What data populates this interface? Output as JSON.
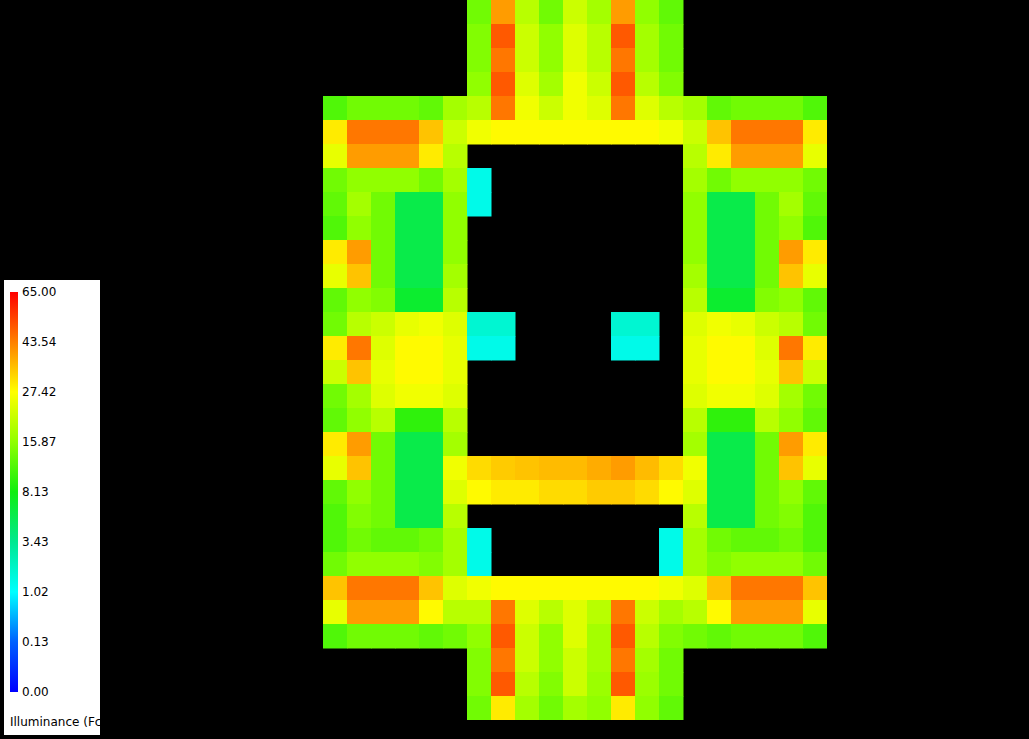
{
  "chart_data": {
    "type": "heatmap",
    "tick_labels": false,
    "cells": [
      [
        null,
        null,
        null,
        null,
        null,
        null,
        14,
        40,
        20,
        14,
        22,
        18,
        40,
        16,
        13,
        null,
        null,
        null,
        null,
        null,
        null
      ],
      [
        null,
        null,
        null,
        null,
        null,
        null,
        15,
        50,
        22,
        16,
        24,
        20,
        50,
        18,
        14,
        null,
        null,
        null,
        null,
        null,
        null
      ],
      [
        null,
        null,
        null,
        null,
        null,
        null,
        15,
        45,
        22,
        16,
        24,
        20,
        45,
        18,
        14,
        null,
        null,
        null,
        null,
        null,
        null
      ],
      [
        null,
        null,
        null,
        null,
        null,
        null,
        16,
        50,
        24,
        18,
        26,
        22,
        50,
        20,
        15,
        null,
        null,
        null,
        null,
        null,
        null
      ],
      [
        12,
        14,
        14,
        14,
        13,
        18,
        20,
        45,
        26,
        22,
        26,
        24,
        45,
        24,
        20,
        18,
        13,
        14,
        14,
        14,
        12
      ],
      [
        30,
        45,
        45,
        45,
        35,
        22,
        26,
        28,
        28,
        28,
        28,
        28,
        28,
        28,
        26,
        22,
        35,
        45,
        45,
        45,
        30
      ],
      [
        25,
        40,
        40,
        40,
        30,
        20,
        null,
        null,
        null,
        null,
        null,
        null,
        null,
        null,
        null,
        20,
        30,
        40,
        40,
        40,
        25
      ],
      [
        14,
        16,
        16,
        16,
        14,
        18,
        1.5,
        null,
        null,
        null,
        null,
        null,
        null,
        null,
        null,
        18,
        14,
        16,
        16,
        16,
        14
      ],
      [
        13,
        18,
        14,
        6,
        6,
        16,
        1.5,
        null,
        null,
        null,
        null,
        null,
        null,
        null,
        null,
        16,
        6,
        6,
        14,
        18,
        13
      ],
      [
        12,
        16,
        14,
        6,
        6,
        16,
        null,
        null,
        null,
        null,
        null,
        null,
        null,
        null,
        null,
        16,
        6,
        6,
        14,
        16,
        12
      ],
      [
        30,
        40,
        14,
        6,
        6,
        16,
        null,
        null,
        null,
        null,
        null,
        null,
        null,
        null,
        null,
        16,
        6,
        6,
        14,
        40,
        30
      ],
      [
        25,
        35,
        14,
        6,
        6,
        18,
        null,
        null,
        null,
        null,
        null,
        null,
        null,
        null,
        null,
        18,
        6,
        6,
        14,
        35,
        25
      ],
      [
        13,
        16,
        15,
        7,
        7,
        20,
        null,
        null,
        null,
        null,
        null,
        null,
        null,
        null,
        null,
        20,
        7,
        7,
        15,
        16,
        13
      ],
      [
        14,
        20,
        22,
        25,
        26,
        24,
        2,
        2,
        null,
        null,
        null,
        null,
        2,
        2,
        null,
        24,
        26,
        25,
        22,
        20,
        14
      ],
      [
        30,
        45,
        24,
        28,
        28,
        25,
        1.5,
        1.5,
        null,
        null,
        null,
        null,
        1.5,
        1.5,
        null,
        25,
        28,
        28,
        24,
        45,
        30
      ],
      [
        22,
        35,
        25,
        28,
        28,
        25,
        null,
        null,
        null,
        null,
        null,
        null,
        null,
        null,
        null,
        25,
        28,
        28,
        25,
        35,
        22
      ],
      [
        14,
        18,
        24,
        26,
        26,
        24,
        null,
        null,
        null,
        null,
        null,
        null,
        null,
        null,
        null,
        24,
        26,
        26,
        24,
        18,
        14
      ],
      [
        13,
        16,
        20,
        10,
        10,
        20,
        null,
        null,
        null,
        null,
        null,
        null,
        null,
        null,
        null,
        20,
        10,
        10,
        20,
        16,
        13
      ],
      [
        30,
        40,
        14,
        6,
        6,
        18,
        null,
        null,
        null,
        null,
        null,
        null,
        null,
        null,
        null,
        18,
        6,
        6,
        14,
        40,
        30
      ],
      [
        25,
        35,
        14,
        6,
        6,
        26,
        32,
        34,
        35,
        36,
        36,
        38,
        40,
        36,
        32,
        26,
        6,
        6,
        14,
        35,
        25
      ],
      [
        13,
        16,
        14,
        6,
        6,
        24,
        28,
        30,
        30,
        32,
        32,
        34,
        34,
        32,
        28,
        24,
        6,
        6,
        14,
        16,
        13
      ],
      [
        12,
        15,
        14,
        6,
        6,
        20,
        null,
        null,
        null,
        null,
        null,
        null,
        null,
        null,
        null,
        20,
        6,
        6,
        14,
        15,
        12
      ],
      [
        12,
        14,
        13,
        13,
        14,
        18,
        1.5,
        null,
        null,
        null,
        null,
        null,
        null,
        null,
        1.5,
        18,
        14,
        13,
        13,
        14,
        12
      ],
      [
        14,
        16,
        16,
        16,
        15,
        18,
        1.5,
        null,
        null,
        null,
        null,
        null,
        null,
        null,
        1.5,
        18,
        15,
        16,
        16,
        16,
        14
      ],
      [
        35,
        45,
        45,
        45,
        35,
        24,
        26,
        28,
        28,
        28,
        28,
        28,
        28,
        28,
        26,
        24,
        35,
        45,
        45,
        45,
        35
      ],
      [
        25,
        40,
        40,
        40,
        28,
        20,
        20,
        45,
        24,
        20,
        24,
        20,
        45,
        22,
        18,
        20,
        28,
        40,
        40,
        40,
        25
      ],
      [
        12,
        14,
        14,
        14,
        13,
        14,
        16,
        50,
        22,
        16,
        24,
        18,
        50,
        20,
        15,
        14,
        13,
        14,
        14,
        14,
        12
      ],
      [
        null,
        null,
        null,
        null,
        null,
        null,
        15,
        45,
        22,
        16,
        22,
        18,
        45,
        18,
        14,
        null,
        null,
        null,
        null,
        null,
        null
      ],
      [
        null,
        null,
        null,
        null,
        null,
        null,
        15,
        50,
        20,
        15,
        22,
        17,
        50,
        17,
        14,
        null,
        null,
        null,
        null,
        null,
        null
      ],
      [
        null,
        null,
        null,
        null,
        null,
        null,
        14,
        30,
        18,
        14,
        18,
        16,
        30,
        16,
        13,
        null,
        null,
        null,
        null,
        null,
        null
      ]
    ],
    "colorbar": {
      "label": "Illuminance (Fc)",
      "range": [
        0,
        65
      ],
      "ticks": [
        {
          "value": 0,
          "label": "0.00"
        },
        0.13,
        1.02,
        3.43,
        8.13,
        15.87,
        27.42,
        43.54,
        {
          "value": 65,
          "label": "65.00"
        }
      ],
      "colors": [
        "#0000ff",
        "#0060ff",
        "#00ffff",
        "#00e890",
        "#10ee10",
        "#90ff00",
        "#ffff00",
        "#ff8000",
        "#ff0000"
      ]
    }
  }
}
